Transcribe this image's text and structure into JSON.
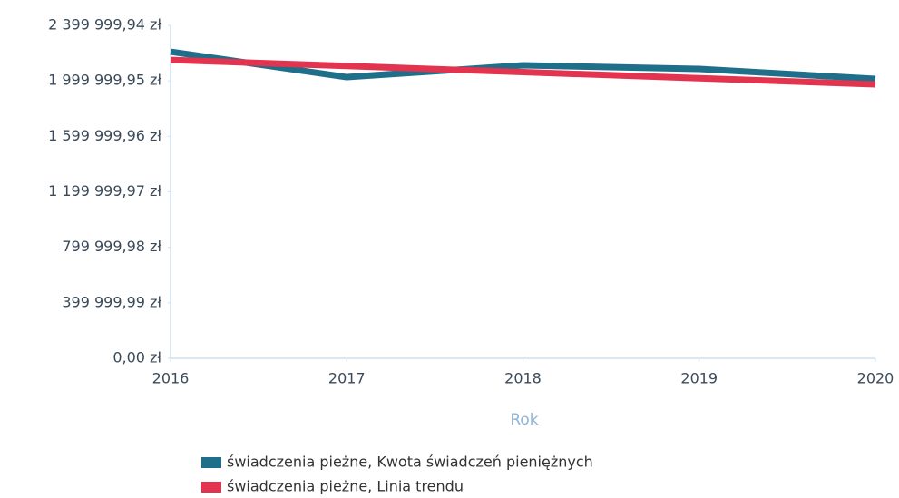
{
  "chart_data": {
    "type": "line",
    "x_label": "Rok",
    "x": [
      2016,
      2017,
      2018,
      2019,
      2020
    ],
    "xlim": [
      2016,
      2020
    ],
    "xticks": [
      2016,
      2017,
      2018,
      2019,
      2020
    ],
    "ylim": [
      0,
      2399999.94
    ],
    "yticks": [
      {
        "value": 0,
        "label": "0,00 zł"
      },
      {
        "value": 399999.99,
        "label": "399 999,99 zł"
      },
      {
        "value": 799999.98,
        "label": "799 999,98 zł"
      },
      {
        "value": 1199999.97,
        "label": "1 199 999,97 zł"
      },
      {
        "value": 1599999.96,
        "label": "1 599 999,96 zł"
      },
      {
        "value": 1999999.95,
        "label": "1 999 999,95 zł"
      },
      {
        "value": 2399999.94,
        "label": "2 399 999,94 zł"
      }
    ],
    "legend": "bottom",
    "series": [
      {
        "name": "świadczenia pieżne, Kwota świadczeń pieniężnych",
        "color": "#1f6f8b",
        "values": [
          2210000,
          2027000,
          2112000,
          2086000,
          2014000
        ]
      },
      {
        "name": "świadczenia pieżne, Linia trendu",
        "color": "#e2334f",
        "values": [
          2151000,
          2107000,
          2063000,
          2019000,
          1975000
        ]
      }
    ]
  }
}
